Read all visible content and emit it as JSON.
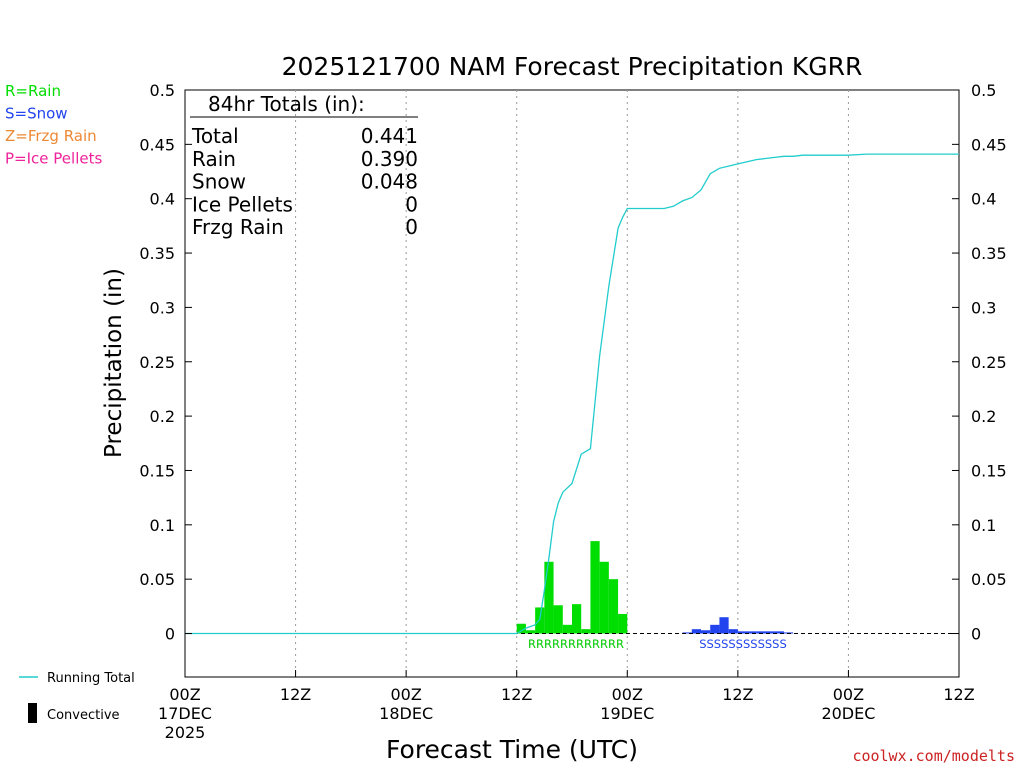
{
  "chart_data": {
    "type": "bar",
    "title": "2025121700 NAM Forecast Precipitation KGRR",
    "xlabel": "Forecast Time (UTC)",
    "ylabel": "Precipitation (in)",
    "ylim": [
      -0.04,
      0.5
    ],
    "xlim_hours": [
      0,
      84
    ],
    "y_ticks": [
      0,
      0.05,
      0.1,
      0.15,
      0.2,
      0.25,
      0.3,
      0.35,
      0.4,
      0.45,
      0.5
    ],
    "y_tick_labels": [
      "0",
      "0.05",
      "0.1",
      "0.15",
      "0.2",
      "0.25",
      "0.3",
      "0.35",
      "0.4",
      "0.45",
      "0.5"
    ],
    "x_ticks": [
      {
        "h": 0,
        "line1": "00Z",
        "line2": "17DEC",
        "line3": "2025"
      },
      {
        "h": 12,
        "line1": "12Z",
        "line2": "",
        "line3": ""
      },
      {
        "h": 24,
        "line1": "00Z",
        "line2": "18DEC",
        "line3": ""
      },
      {
        "h": 36,
        "line1": "12Z",
        "line2": "",
        "line3": ""
      },
      {
        "h": 48,
        "line1": "00Z",
        "line2": "19DEC",
        "line3": ""
      },
      {
        "h": 60,
        "line1": "12Z",
        "line2": "",
        "line3": ""
      },
      {
        "h": 72,
        "line1": "00Z",
        "line2": "20DEC",
        "line3": ""
      },
      {
        "h": 84,
        "line1": "12Z",
        "line2": "",
        "line3": ""
      }
    ],
    "grid": "vertical-dotted",
    "series": [
      {
        "name": "Rain",
        "color": "#00dd00",
        "hours": [
          37,
          38,
          39,
          40,
          41,
          42,
          43,
          44,
          45,
          46,
          47,
          48
        ],
        "values": [
          0.009,
          0.003,
          0.024,
          0.066,
          0.026,
          0.008,
          0.027,
          0.004,
          0.085,
          0.066,
          0.05,
          0.018
        ]
      },
      {
        "name": "Snow",
        "color": "#2244ee",
        "hours": [
          55,
          56,
          57,
          58,
          59,
          60,
          61,
          62,
          63,
          64,
          65,
          66
        ],
        "values": [
          0.001,
          0.004,
          0.003,
          0.008,
          0.015,
          0.004,
          0.002,
          0.002,
          0.002,
          0.002,
          0.002,
          0.001
        ]
      },
      {
        "name": "Running Total",
        "type": "line",
        "color": "#22cccc",
        "x": [
          0,
          36,
          37,
          38,
          38.5,
          39,
          39.5,
          40,
          40.5,
          41,
          42,
          43,
          44,
          45,
          46,
          47,
          47.5,
          48,
          52,
          53,
          54,
          55,
          56,
          57,
          58,
          59,
          60,
          61,
          62,
          63,
          64,
          65,
          66,
          67,
          68,
          70,
          72,
          74,
          76,
          78,
          80,
          82,
          84
        ],
        "values": [
          0,
          0,
          0.005,
          0.008,
          0.013,
          0.04,
          0.07,
          0.103,
          0.12,
          0.13,
          0.138,
          0.165,
          0.17,
          0.255,
          0.32,
          0.373,
          0.383,
          0.391,
          0.391,
          0.393,
          0.398,
          0.401,
          0.408,
          0.423,
          0.428,
          0.43,
          0.432,
          0.434,
          0.436,
          0.437,
          0.438,
          0.439,
          0.439,
          0.44,
          0.44,
          0.44,
          0.44,
          0.441,
          0.441,
          0.441,
          0.441,
          0.441,
          0.441
        ]
      }
    ],
    "rain_marker": "RRRRRRRRRRRR",
    "snow_marker": "SSSSSSSSSSSS",
    "totals": {
      "header": "84hr Totals (in):",
      "rows": [
        {
          "label": "Total",
          "value": "0.441"
        },
        {
          "label": "Rain",
          "value": "0.390"
        },
        {
          "label": "Snow",
          "value": "0.048"
        },
        {
          "label": "Ice Pellets",
          "value": "0"
        },
        {
          "label": "Frzg Rain",
          "value": "0"
        }
      ]
    },
    "legend": {
      "types": [
        {
          "label": "R=Rain",
          "color": "#00dd00"
        },
        {
          "label": "S=Snow",
          "color": "#2244ee"
        },
        {
          "label": "Z=Frzg Rain",
          "color": "#ee8833"
        },
        {
          "label": "P=Ice Pellets",
          "color": "#ee2299"
        }
      ],
      "running_total_label": "Running Total",
      "convective_label": "Convective"
    },
    "credit": "coolwx.com/modelts",
    "credit_color": "#cc2222"
  }
}
